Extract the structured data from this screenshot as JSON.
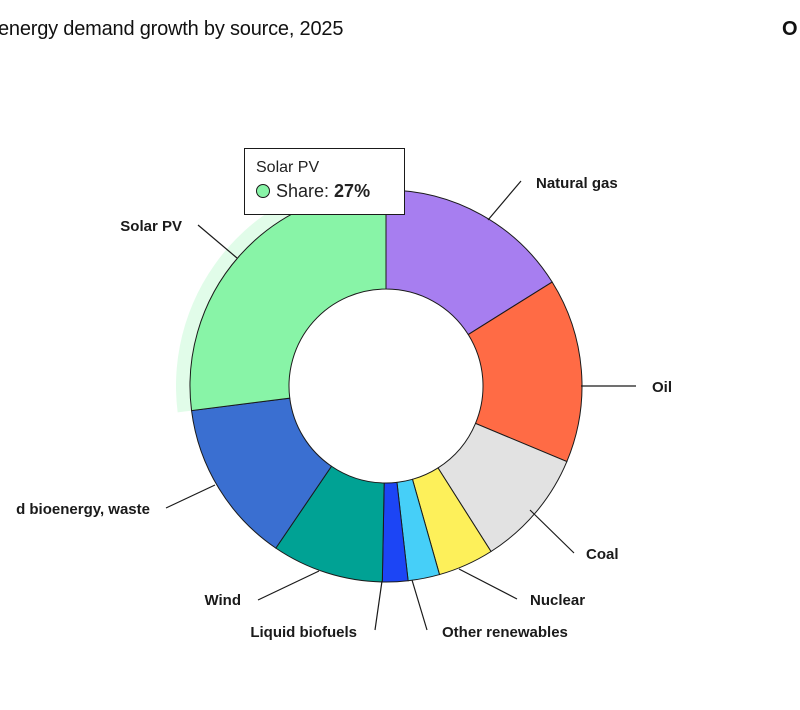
{
  "page": {
    "title": "energy demand growth by source, 2025",
    "right_cut_text": "O"
  },
  "tooltip": {
    "name": "Solar PV",
    "share_label": "Share: ",
    "share_value": "27%",
    "dot_color": "#88f4a7"
  },
  "chart_data": {
    "type": "pie",
    "title": "energy demand growth by source, 2025",
    "donut": true,
    "highlighted": "Solar PV",
    "slices": [
      {
        "label": "Natural gas",
        "value": 16.1,
        "color": "#a77ef0"
      },
      {
        "label": "Oil",
        "value": 15.2,
        "color": "#ff6b45"
      },
      {
        "label": "Coal",
        "value": 9.7,
        "color": "#e2e2e2"
      },
      {
        "label": "Nuclear",
        "value": 4.6,
        "color": "#fdf05a"
      },
      {
        "label": "Other renewables",
        "value": 2.6,
        "color": "#46cff8"
      },
      {
        "label": "Liquid biofuels",
        "value": 2.1,
        "color": "#1c45f5"
      },
      {
        "label": "Wind",
        "value": 9.2,
        "color": "#00a294"
      },
      {
        "label": "d bioenergy, waste",
        "value": 13.5,
        "color": "#3a6fd1"
      },
      {
        "label": "Solar PV",
        "value": 27,
        "color": "#88f4a7"
      }
    ]
  }
}
